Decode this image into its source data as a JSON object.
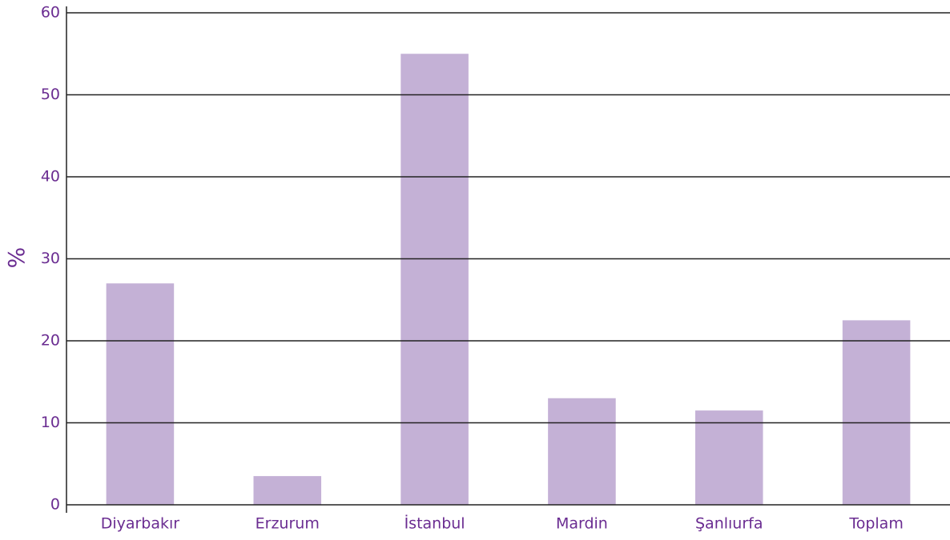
{
  "chart_data": {
    "type": "bar",
    "y_label": "%",
    "categories": [
      "Diyarbakır",
      "Erzurum",
      "İstanbul",
      "Mardin",
      "Şanlıurfa",
      "Toplam"
    ],
    "values": [
      27,
      3.5,
      55,
      13,
      11.5,
      22.5
    ],
    "color": "#c4b1d6",
    "ylim": [
      0,
      60
    ],
    "yticks": [
      0,
      10,
      20,
      30,
      40,
      50,
      60
    ],
    "grid": true
  }
}
